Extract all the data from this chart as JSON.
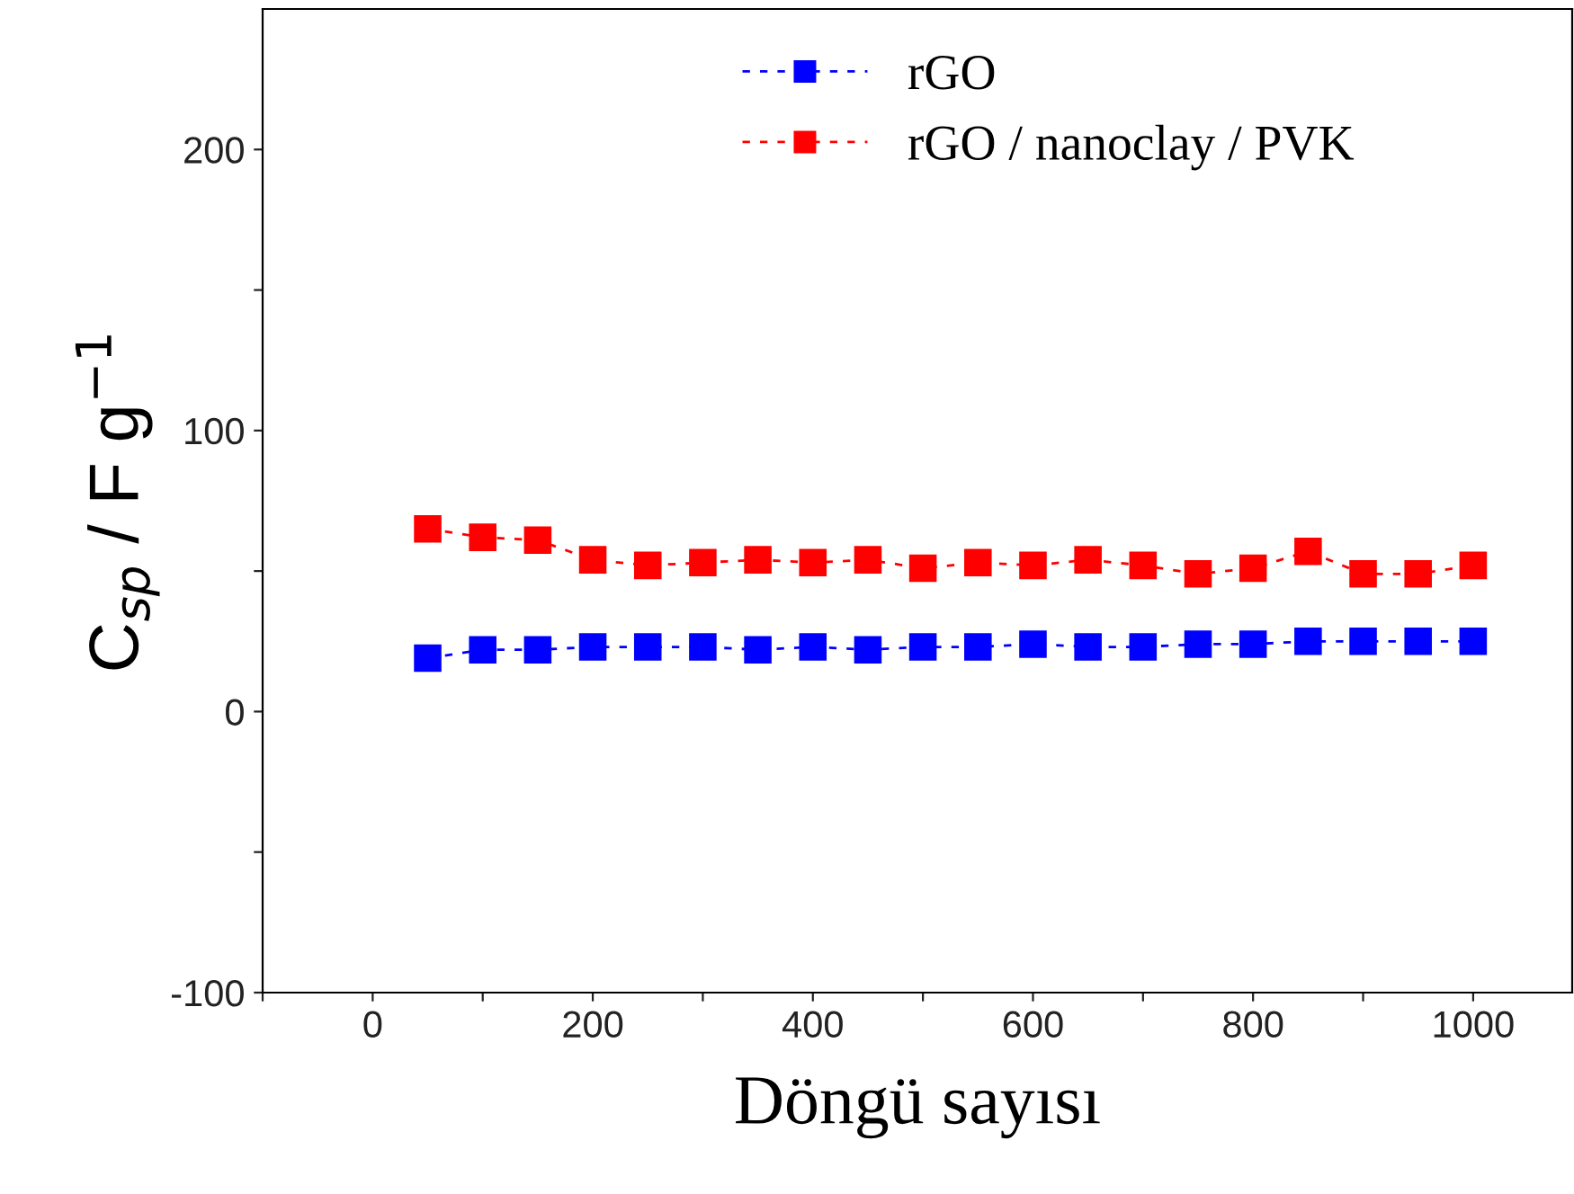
{
  "chart_data": {
    "type": "line",
    "xlabel": "Döngü sayısı",
    "ylabel": "C$_{sp}$ / F g$^{−1}$",
    "x": [
      50,
      100,
      150,
      200,
      250,
      300,
      350,
      400,
      450,
      500,
      550,
      600,
      650,
      700,
      750,
      800,
      850,
      900,
      950,
      1000
    ],
    "series": [
      {
        "name": "rGO",
        "color": "#0000ff",
        "values": [
          19,
          22,
          22,
          23,
          23,
          23,
          22,
          23,
          22,
          23,
          23,
          24,
          23,
          23,
          24,
          24,
          25,
          25,
          25,
          25
        ]
      },
      {
        "name": "rGO / nanoclay / PVK",
        "color": "#ff0000",
        "values": [
          65,
          62,
          61,
          54,
          52,
          53,
          54,
          53,
          54,
          51,
          53,
          52,
          54,
          52,
          49,
          51,
          57,
          49,
          49,
          52
        ]
      }
    ],
    "xlim": [
      -100,
      1090
    ],
    "ylim": [
      -100,
      250
    ],
    "xticks": [
      {
        "value": -100,
        "label": null
      },
      0,
      {
        "value": 100,
        "label": null
      },
      200,
      {
        "value": 300,
        "label": null
      },
      400,
      {
        "value": 500,
        "label": null
      },
      600,
      {
        "value": 700,
        "label": null
      },
      800,
      {
        "value": 900,
        "label": null
      },
      1000
    ],
    "yticks": [
      -100,
      {
        "value": -50,
        "label": null
      },
      0,
      {
        "value": 50,
        "label": null
      },
      100,
      {
        "value": 150,
        "label": null
      },
      200
    ],
    "marker": "square",
    "line_style": "dashed",
    "grid": false,
    "legend": "top"
  }
}
